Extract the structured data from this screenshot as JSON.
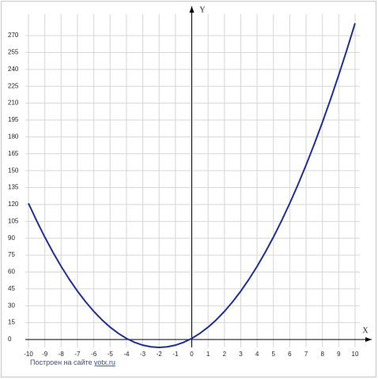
{
  "chart_data": {
    "type": "line",
    "x_label": "X",
    "y_label": "Y",
    "x": [
      -10,
      -9.5,
      -9,
      -8.5,
      -8,
      -7.5,
      -7,
      -6.5,
      -6,
      -5.5,
      -5,
      -4.5,
      -4,
      -3.5,
      -3,
      -2.5,
      -2,
      -1.5,
      -1,
      -0.5,
      0,
      0.5,
      1,
      1.5,
      2,
      2.5,
      3,
      3.5,
      4,
      4.5,
      5,
      5.5,
      6,
      6.5,
      7,
      7.5,
      8,
      8.5,
      9,
      9.5,
      10
    ],
    "values": [
      121,
      105.5,
      91,
      77.5,
      65,
      53.5,
      43,
      33.5,
      25,
      17.5,
      11,
      5.5,
      1,
      -2.5,
      -5,
      -6.5,
      -7,
      -6.5,
      -5,
      -2.5,
      1,
      5.5,
      11,
      17.5,
      25,
      33.5,
      43,
      53.5,
      65,
      77.5,
      91,
      105.5,
      121,
      137.5,
      155,
      173.5,
      193,
      213.5,
      235,
      257.5,
      281
    ],
    "color": "#1f2f96",
    "xlim": [
      -10,
      10
    ],
    "ylim": [
      -7,
      289
    ],
    "xticks": [
      -10,
      -9,
      -8,
      -7,
      -6,
      -5,
      -4,
      -3,
      -2,
      -1,
      0,
      1,
      2,
      3,
      4,
      5,
      6,
      7,
      8,
      9,
      10
    ],
    "yticks": [
      0,
      15,
      30,
      45,
      60,
      75,
      90,
      105,
      120,
      135,
      150,
      165,
      180,
      195,
      210,
      225,
      240,
      255,
      270
    ],
    "grid": true,
    "credit": {
      "text": "Построен на сайте",
      "link": "yotx.ru"
    }
  }
}
